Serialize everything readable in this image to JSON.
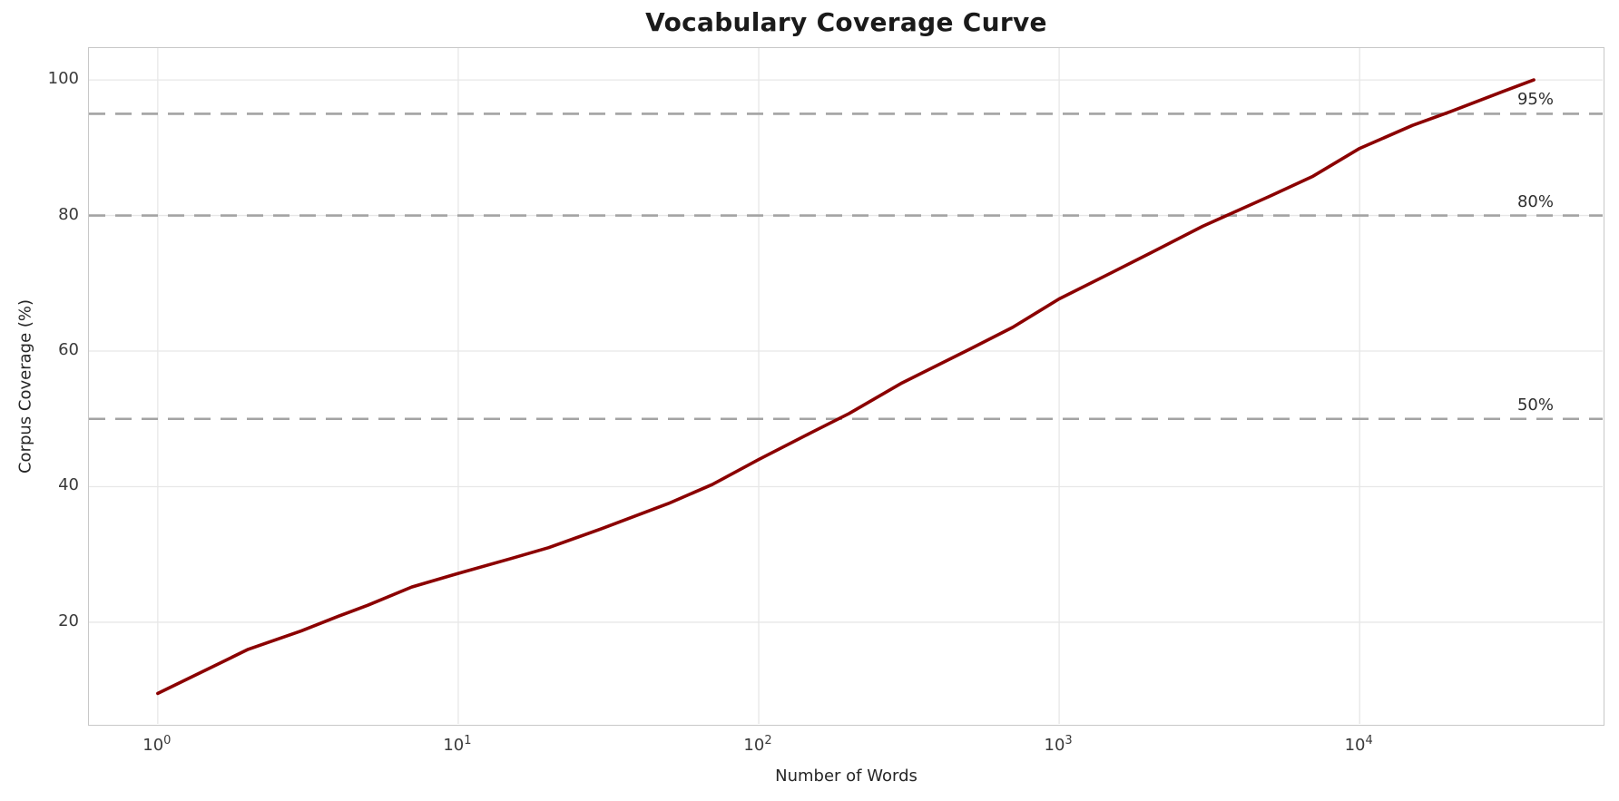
{
  "chart_data": {
    "type": "line",
    "title": "Vocabulary Coverage Curve",
    "xlabel": "Number of Words",
    "ylabel": "Corpus Coverage (%)",
    "x_scale": "log",
    "xlim": [
      0.59,
      64400
    ],
    "ylim": [
      5.0,
      104.7
    ],
    "x_ticks": [
      1,
      10,
      100,
      1000,
      10000
    ],
    "x_tick_base": "10",
    "x_tick_exponents": [
      "0",
      "1",
      "2",
      "3",
      "4"
    ],
    "y_ticks": [
      20,
      40,
      60,
      80,
      100
    ],
    "grid": true,
    "legend": false,
    "series": [
      {
        "name": "vocabulary-coverage",
        "color": "#8b0000",
        "x": [
          1,
          2,
          3,
          4,
          5,
          7,
          10,
          15,
          20,
          30,
          50,
          70,
          100,
          150,
          200,
          300,
          500,
          700,
          1000,
          1500,
          2000,
          3000,
          5000,
          7000,
          10000,
          15000,
          20000,
          30000,
          38000
        ],
        "y": [
          9.5,
          16.0,
          18.7,
          20.9,
          22.5,
          25.2,
          27.2,
          29.4,
          31.0,
          33.8,
          37.5,
          40.3,
          44.0,
          48.0,
          50.8,
          55.3,
          60.2,
          63.5,
          67.7,
          71.6,
          74.4,
          78.4,
          82.8,
          85.8,
          89.9,
          93.3,
          95.3,
          98.3,
          100.0
        ]
      }
    ],
    "thresholds": [
      {
        "value": 50,
        "label": "50%"
      },
      {
        "value": 80,
        "label": "80%"
      },
      {
        "value": 95,
        "label": "95%"
      }
    ]
  },
  "colors": {
    "line": "#8b0000",
    "threshold_dash": "#a3a3a3",
    "grid": "#e7e7e7",
    "spine": "#c8c8c8",
    "text": "#262626"
  }
}
